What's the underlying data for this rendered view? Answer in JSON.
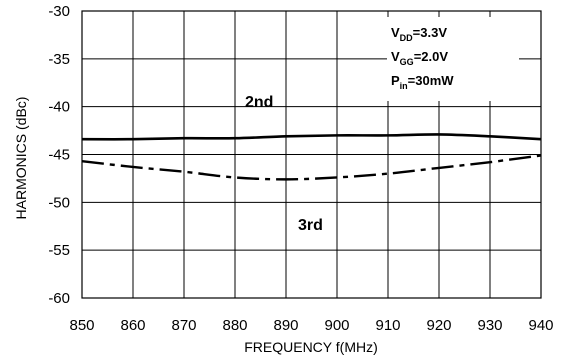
{
  "chart_data": {
    "type": "line",
    "title": "",
    "xlabel": "FREQUENCY f(MHz)",
    "ylabel": "HARMONICS (dBc)",
    "xlim": [
      850,
      940
    ],
    "ylim": [
      -60,
      -30
    ],
    "x_ticks": [
      "850",
      "860",
      "870",
      "880",
      "890",
      "900",
      "910",
      "920",
      "930",
      "940"
    ],
    "y_ticks": [
      "-30",
      "-35",
      "-40",
      "-45",
      "-50",
      "-55",
      "-60"
    ],
    "grid": true,
    "series": [
      {
        "name": "2nd",
        "style": "solid",
        "x": [
          850,
          860,
          870,
          880,
          890,
          900,
          910,
          920,
          930,
          940
        ],
        "y": [
          -43.4,
          -43.4,
          -43.3,
          -43.3,
          -43.1,
          -43.0,
          -43.0,
          -42.9,
          -43.1,
          -43.4
        ]
      },
      {
        "name": "3rd",
        "style": "dashdot",
        "x": [
          850,
          860,
          870,
          880,
          890,
          900,
          910,
          920,
          930,
          940
        ],
        "y": [
          -45.7,
          -46.3,
          -46.8,
          -47.4,
          -47.6,
          -47.4,
          -47.0,
          -46.4,
          -45.8,
          -45.1
        ]
      }
    ],
    "conditions": [
      {
        "main": "V",
        "sub": "DD",
        "rest": "=3.3V"
      },
      {
        "main": "V",
        "sub": "GG",
        "rest": "=2.0V"
      },
      {
        "main": "P",
        "sub": "in",
        "rest": "=30mW"
      }
    ],
    "colors": {
      "line": "#000000",
      "grid": "#000000",
      "background": "#ffffff"
    }
  }
}
